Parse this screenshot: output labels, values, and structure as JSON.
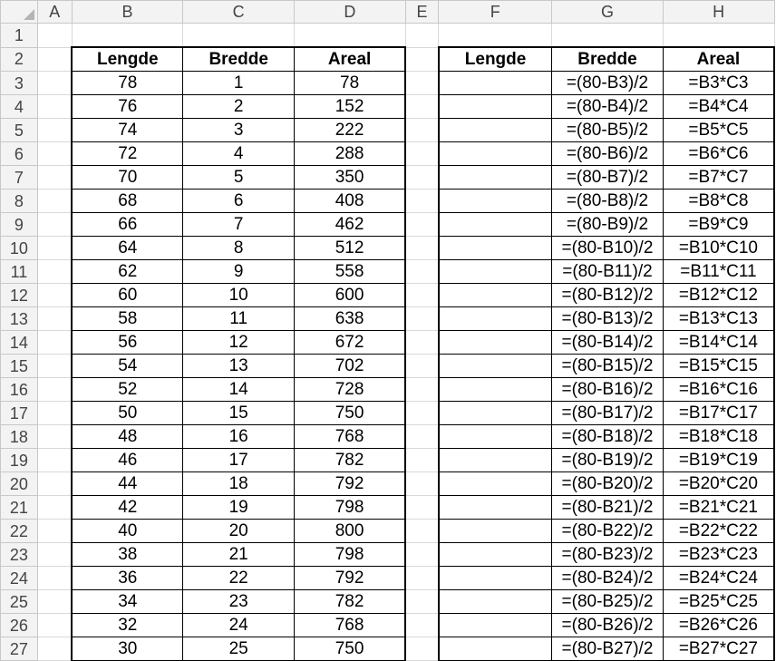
{
  "columns": [
    "A",
    "B",
    "C",
    "D",
    "E",
    "F",
    "G",
    "H"
  ],
  "left_table": {
    "headers": [
      "Lengde",
      "Bredde",
      "Areal"
    ],
    "rows": [
      [
        "78",
        "1",
        "78"
      ],
      [
        "76",
        "2",
        "152"
      ],
      [
        "74",
        "3",
        "222"
      ],
      [
        "72",
        "4",
        "288"
      ],
      [
        "70",
        "5",
        "350"
      ],
      [
        "68",
        "6",
        "408"
      ],
      [
        "66",
        "7",
        "462"
      ],
      [
        "64",
        "8",
        "512"
      ],
      [
        "62",
        "9",
        "558"
      ],
      [
        "60",
        "10",
        "600"
      ],
      [
        "58",
        "11",
        "638"
      ],
      [
        "56",
        "12",
        "672"
      ],
      [
        "54",
        "13",
        "702"
      ],
      [
        "52",
        "14",
        "728"
      ],
      [
        "50",
        "15",
        "750"
      ],
      [
        "48",
        "16",
        "768"
      ],
      [
        "46",
        "17",
        "782"
      ],
      [
        "44",
        "18",
        "792"
      ],
      [
        "42",
        "19",
        "798"
      ],
      [
        "40",
        "20",
        "800"
      ],
      [
        "38",
        "21",
        "798"
      ],
      [
        "36",
        "22",
        "792"
      ],
      [
        "34",
        "23",
        "782"
      ],
      [
        "32",
        "24",
        "768"
      ],
      [
        "30",
        "25",
        "750"
      ]
    ]
  },
  "right_table": {
    "headers": [
      "Lengde",
      "Bredde",
      "Areal"
    ],
    "rows": [
      [
        "",
        "=(80-B3)/2",
        "=B3*C3"
      ],
      [
        "",
        "=(80-B4)/2",
        "=B4*C4"
      ],
      [
        "",
        "=(80-B5)/2",
        "=B5*C5"
      ],
      [
        "",
        "=(80-B6)/2",
        "=B6*C6"
      ],
      [
        "",
        "=(80-B7)/2",
        "=B7*C7"
      ],
      [
        "",
        "=(80-B8)/2",
        "=B8*C8"
      ],
      [
        "",
        "=(80-B9)/2",
        "=B9*C9"
      ],
      [
        "",
        "=(80-B10)/2",
        "=B10*C10"
      ],
      [
        "",
        "=(80-B11)/2",
        "=B11*C11"
      ],
      [
        "",
        "=(80-B12)/2",
        "=B12*C12"
      ],
      [
        "",
        "=(80-B13)/2",
        "=B13*C13"
      ],
      [
        "",
        "=(80-B14)/2",
        "=B14*C14"
      ],
      [
        "",
        "=(80-B15)/2",
        "=B15*C15"
      ],
      [
        "",
        "=(80-B16)/2",
        "=B16*C16"
      ],
      [
        "",
        "=(80-B17)/2",
        "=B17*C17"
      ],
      [
        "",
        "=(80-B18)/2",
        "=B18*C18"
      ],
      [
        "",
        "=(80-B19)/2",
        "=B19*C19"
      ],
      [
        "",
        "=(80-B20)/2",
        "=B20*C20"
      ],
      [
        "",
        "=(80-B21)/2",
        "=B21*C21"
      ],
      [
        "",
        "=(80-B22)/2",
        "=B22*C22"
      ],
      [
        "",
        "=(80-B23)/2",
        "=B23*C23"
      ],
      [
        "",
        "=(80-B24)/2",
        "=B24*C24"
      ],
      [
        "",
        "=(80-B25)/2",
        "=B25*C25"
      ],
      [
        "",
        "=(80-B26)/2",
        "=B26*C26"
      ],
      [
        "",
        "=(80-B27)/2",
        "=B27*C27"
      ]
    ]
  }
}
